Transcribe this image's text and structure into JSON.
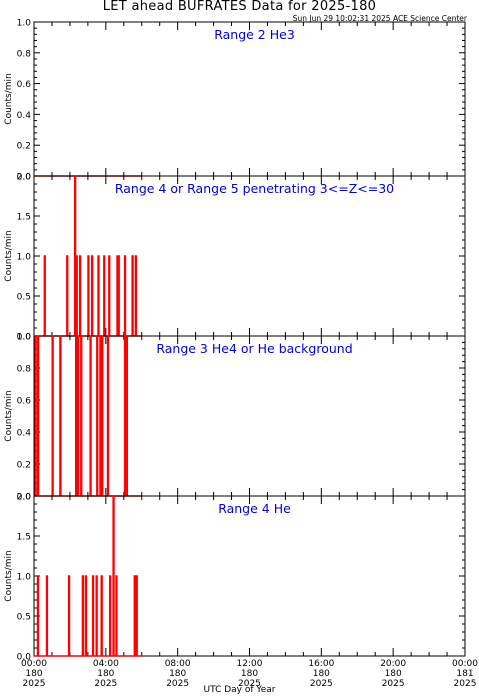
{
  "title": "LET ahead BUFRATES Data for 2025-180",
  "subtitle": "Sun Jun 29 10:02:31 2025 ACE Science Center",
  "xlabel": "UTC Day of Year",
  "x_ticks": [
    {
      "l1": "00:00",
      "l2": "180",
      "l3": "2025"
    },
    {
      "l1": "04:00",
      "l2": "180",
      "l3": "2025"
    },
    {
      "l1": "08:00",
      "l2": "180",
      "l3": "2025"
    },
    {
      "l1": "12:00",
      "l2": "180",
      "l3": "2025"
    },
    {
      "l1": "16:00",
      "l2": "180",
      "l3": "2025"
    },
    {
      "l1": "20:00",
      "l2": "180",
      "l3": "2025"
    },
    {
      "l1": "00:00",
      "l2": "181",
      "l3": "2025"
    }
  ],
  "colors": {
    "line": "#ff0000",
    "label": "#0000dd",
    "axis": "#000000"
  },
  "chart_data": [
    {
      "type": "line",
      "title": "Range 2 He3",
      "ylabel": "Counts/min",
      "ylim": [
        0,
        1
      ],
      "yticks": [
        "0.0",
        "0.2",
        "0.4",
        "0.6",
        "0.8",
        "1.0"
      ],
      "x_unit": "hours UTC, day 180",
      "xlim": [
        0,
        24
      ],
      "series": [
        {
          "x": [
            0,
            6
          ],
          "y": [
            0,
            0
          ]
        }
      ]
    },
    {
      "type": "line",
      "title": "Range 4 or Range 5 penetrating 3<=Z<=30",
      "ylabel": "Counts/min",
      "ylim": [
        0,
        2
      ],
      "yticks": [
        "0.0",
        "0.5",
        "1.0",
        "1.5",
        "2.0"
      ],
      "x_unit": "hours UTC, day 180",
      "xlim": [
        0,
        24
      ],
      "series": [
        {
          "x": [
            0.0,
            0.58,
            0.58,
            0.62,
            0.62,
            1.83,
            1.83,
            1.87,
            1.87,
            2.27,
            2.27,
            2.31,
            2.31,
            2.35,
            2.35,
            2.4,
            2.4,
            2.55,
            2.55,
            2.59,
            2.59,
            3.01,
            3.01,
            3.05,
            3.05,
            3.22,
            3.22,
            3.26,
            3.26,
            3.57,
            3.57,
            3.61,
            3.61,
            3.89,
            3.89,
            3.93,
            3.93,
            4.17,
            4.17,
            4.21,
            4.21,
            4.63,
            4.63,
            4.67,
            4.67,
            4.7,
            4.7,
            4.74,
            4.74,
            5.05,
            5.05,
            5.09,
            5.09,
            5.47,
            5.47,
            5.51,
            5.51,
            5.65,
            5.65,
            5.69,
            5.69,
            6.0
          ],
          "y": [
            0,
            0,
            1,
            1,
            0,
            0,
            1,
            1,
            0,
            0,
            2,
            2,
            0,
            0,
            1,
            1,
            0,
            0,
            1,
            1,
            0,
            0,
            1,
            1,
            0,
            0,
            1,
            1,
            0,
            0,
            1,
            1,
            0,
            0,
            1,
            1,
            0,
            0,
            1,
            1,
            0,
            0,
            1,
            1,
            0,
            0,
            1,
            1,
            0,
            0,
            1,
            1,
            0,
            0,
            1,
            1,
            0,
            0,
            1,
            1,
            0,
            0
          ]
        }
      ]
    },
    {
      "type": "line",
      "title": "Range 3 He4 or He background",
      "ylabel": "Counts/min",
      "ylim": [
        0,
        1
      ],
      "yticks": [
        "0.0",
        "0.2",
        "0.4",
        "0.6",
        "0.8",
        "1.0"
      ],
      "x_unit": "hours UTC, day 180",
      "xlim": [
        0,
        24
      ],
      "series": [
        {
          "x": [
            0.0,
            0.07,
            0.07,
            0.11,
            0.11,
            0.21,
            0.21,
            0.25,
            0.25,
            1.02,
            1.02,
            1.06,
            1.06,
            1.45,
            1.45,
            1.49,
            1.49,
            2.33,
            2.33,
            2.37,
            2.37,
            2.44,
            2.44,
            2.48,
            2.48,
            2.61,
            2.61,
            2.65,
            2.65,
            3.13,
            3.13,
            3.17,
            3.17,
            3.5,
            3.5,
            3.54,
            3.54,
            3.68,
            3.68,
            3.72,
            3.72,
            3.78,
            3.78,
            3.82,
            3.82,
            4.1,
            4.1,
            4.14,
            4.14,
            5.05,
            5.05,
            5.09,
            5.09,
            5.15,
            5.15,
            5.19,
            5.19,
            6.0
          ],
          "y": [
            0,
            0,
            1,
            1,
            0,
            0,
            1,
            1,
            0,
            0,
            1,
            1,
            0,
            0,
            1,
            1,
            0,
            0,
            1,
            1,
            0,
            0,
            1,
            1,
            0,
            0,
            1,
            1,
            0,
            0,
            1,
            1,
            0,
            0,
            1,
            1,
            0,
            0,
            1,
            1,
            0,
            0,
            1,
            1,
            0,
            0,
            1,
            1,
            0,
            0,
            1,
            1,
            0,
            0,
            1,
            1,
            0,
            0
          ]
        }
      ]
    },
    {
      "type": "line",
      "title": "Range 4 He",
      "ylabel": "Counts/min",
      "ylim": [
        0,
        2
      ],
      "yticks": [
        "0.0",
        "0.5",
        "1.0",
        "1.5",
        "2.0"
      ],
      "x_unit": "hours UTC, day 180",
      "xlim": [
        0,
        24
      ],
      "series": [
        {
          "x": [
            0.0,
            0.2,
            0.2,
            0.24,
            0.24,
            0.7,
            0.7,
            0.74,
            0.74,
            1.93,
            1.93,
            1.97,
            1.97,
            2.7,
            2.7,
            2.74,
            2.74,
            2.87,
            2.87,
            2.91,
            2.91,
            3.27,
            3.27,
            3.31,
            3.31,
            3.47,
            3.47,
            3.51,
            3.51,
            3.75,
            3.75,
            3.79,
            3.79,
            4.22,
            4.22,
            4.26,
            4.26,
            4.41,
            4.41,
            4.45,
            4.45,
            4.57,
            4.57,
            4.61,
            4.61,
            5.59,
            5.59,
            5.63,
            5.63,
            5.7,
            5.7,
            5.74,
            5.74,
            6.0
          ],
          "y": [
            0,
            0,
            1,
            1,
            0,
            0,
            1,
            1,
            0,
            0,
            1,
            1,
            0,
            0,
            1,
            1,
            0,
            0,
            1,
            1,
            0,
            0,
            1,
            1,
            0,
            0,
            1,
            1,
            0,
            0,
            1,
            1,
            0,
            0,
            1,
            1,
            0,
            0,
            2,
            2,
            0,
            0,
            1,
            1,
            0,
            0,
            1,
            1,
            0,
            0,
            1,
            1,
            0,
            0
          ]
        }
      ]
    }
  ]
}
